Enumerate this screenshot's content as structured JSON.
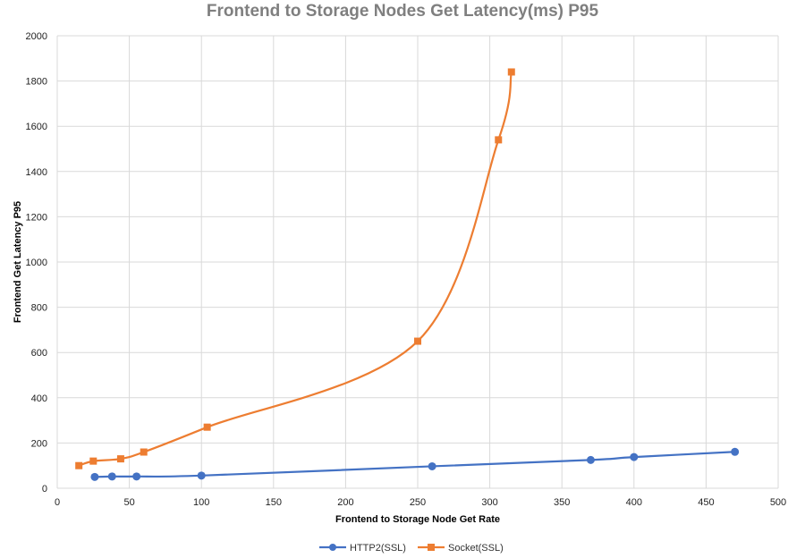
{
  "chart_data": {
    "type": "line",
    "title": "Frontend to Storage Nodes Get Latency(ms) P95",
    "xlabel": "Frontend to Storage Node Get Rate",
    "ylabel": "Frontend Get Latency P95",
    "xlim": [
      0,
      500
    ],
    "ylim": [
      0,
      2000
    ],
    "x_ticks": [
      0,
      50,
      100,
      150,
      200,
      250,
      300,
      350,
      400,
      450,
      500
    ],
    "y_ticks": [
      0,
      200,
      400,
      600,
      800,
      1000,
      1200,
      1400,
      1600,
      1800,
      2000
    ],
    "grid": true,
    "legend_position": "bottom",
    "series": [
      {
        "name": "HTTP2(SSL)",
        "color": "#4472c4",
        "marker": "circle",
        "points": [
          [
            26,
            50
          ],
          [
            38,
            52
          ],
          [
            55,
            52
          ],
          [
            100,
            56
          ],
          [
            260,
            97
          ],
          [
            370,
            125
          ],
          [
            400,
            138
          ],
          [
            470,
            161
          ]
        ]
      },
      {
        "name": "Socket(SSL)",
        "color": "#ed7d31",
        "marker": "square",
        "points": [
          [
            15,
            100
          ],
          [
            25,
            120
          ],
          [
            44,
            130
          ],
          [
            60,
            160
          ],
          [
            104,
            270
          ],
          [
            250,
            650
          ],
          [
            306,
            1540
          ],
          [
            315,
            1840
          ]
        ]
      }
    ]
  }
}
